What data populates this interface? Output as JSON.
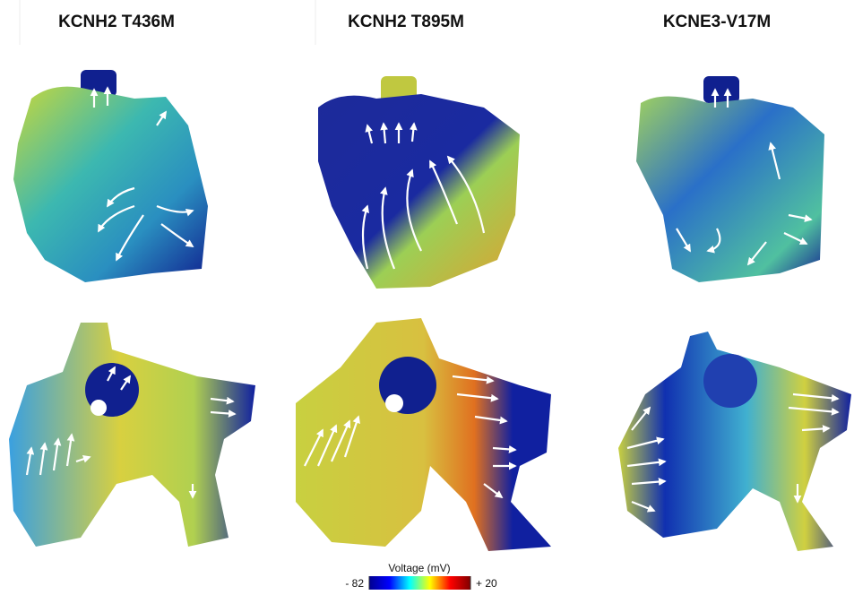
{
  "columns": [
    "KCNH2 T436M",
    "KCNH2 T895M",
    "KCNE3-V17M"
  ],
  "colorbar": {
    "title": "Voltage (mV)",
    "ticks": [
      {
        "value": -82,
        "label": "- 82"
      },
      {
        "value": 20,
        "label": "+ 20"
      }
    ],
    "colors": [
      "#00008f",
      "#0000ff",
      "#00ffff",
      "#ffff00",
      "#ff0000",
      "#800000"
    ]
  }
}
